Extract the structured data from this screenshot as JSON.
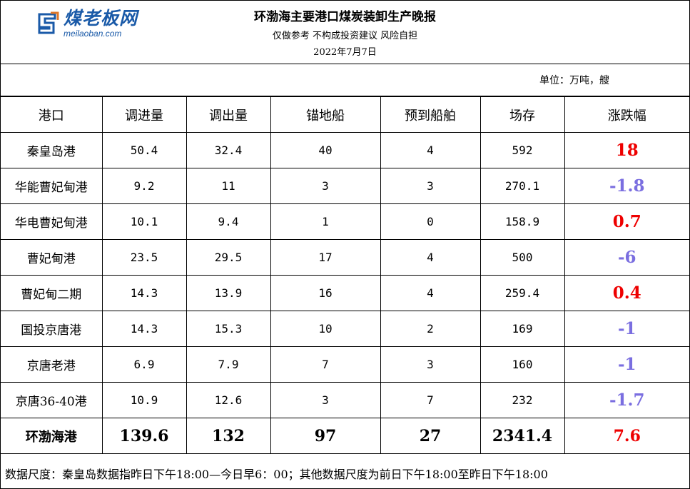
{
  "header": {
    "logo_text": "煤老板网",
    "logo_url": "meilaoban.com",
    "title": "环渤海主要港口煤炭装卸生产晚报",
    "subtitle": "仅做参考 不构成投资建议 风险自担",
    "date": "2022年7月7日"
  },
  "unit": "单位：万吨，艘",
  "table": {
    "columns": [
      "港口",
      "调进量",
      "调出量",
      "锚地船",
      "预到船舶",
      "场存",
      "涨跌幅"
    ],
    "rows": [
      {
        "port": "秦皇岛港",
        "in": "50.4",
        "out": "32.4",
        "anchor": "40",
        "expected": "4",
        "stock": "592",
        "change": "18",
        "dir": "up"
      },
      {
        "port": "华能曹妃甸港",
        "in": "9.2",
        "out": "11",
        "anchor": "3",
        "expected": "3",
        "stock": "270.1",
        "change": "-1.8",
        "dir": "down"
      },
      {
        "port": "华电曹妃甸港",
        "in": "10.1",
        "out": "9.4",
        "anchor": "1",
        "expected": "0",
        "stock": "158.9",
        "change": "0.7",
        "dir": "up"
      },
      {
        "port": "曹妃甸港",
        "in": "23.5",
        "out": "29.5",
        "anchor": "17",
        "expected": "4",
        "stock": "500",
        "change": "-6",
        "dir": "down"
      },
      {
        "port": "曹妃甸二期",
        "in": "14.3",
        "out": "13.9",
        "anchor": "16",
        "expected": "4",
        "stock": "259.4",
        "change": "0.4",
        "dir": "up"
      },
      {
        "port": "国投京唐港",
        "in": "14.3",
        "out": "15.3",
        "anchor": "10",
        "expected": "2",
        "stock": "169",
        "change": "-1",
        "dir": "down"
      },
      {
        "port": "京唐老港",
        "in": "6.9",
        "out": "7.9",
        "anchor": "7",
        "expected": "3",
        "stock": "160",
        "change": "-1",
        "dir": "down"
      },
      {
        "port": "京唐36-40港",
        "in": "10.9",
        "out": "12.6",
        "anchor": "3",
        "expected": "7",
        "stock": "232",
        "change": "-1.7",
        "dir": "down"
      }
    ],
    "total": {
      "port": "环渤海港",
      "in": "139.6",
      "out": "132",
      "anchor": "97",
      "expected": "27",
      "stock": "2341.4",
      "change": "7.6",
      "dir": "up"
    }
  },
  "colors": {
    "up": "#ee0000",
    "down": "#7a6ee0",
    "logo": "#1a5aa8"
  },
  "footer": "数据尺度：秦皇岛数据指昨日下午18:00—今日早6：00；其他数据尺度为前日下午18:00至昨日下午18:00"
}
